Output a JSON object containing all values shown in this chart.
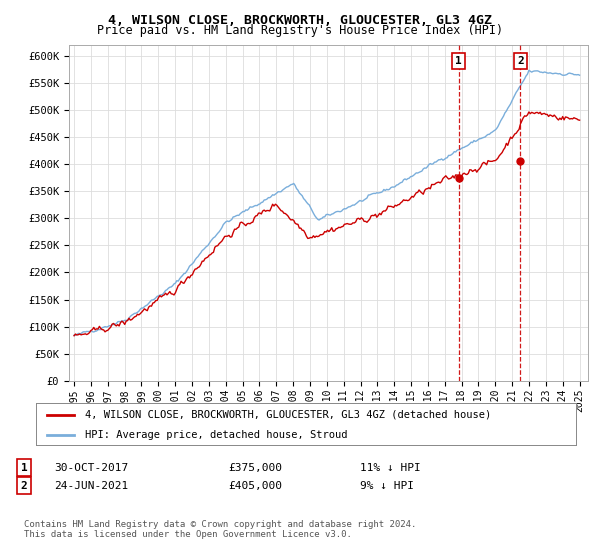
{
  "title": "4, WILSON CLOSE, BROCKWORTH, GLOUCESTER, GL3 4GZ",
  "subtitle": "Price paid vs. HM Land Registry's House Price Index (HPI)",
  "ylabel_ticks": [
    "£0",
    "£50K",
    "£100K",
    "£150K",
    "£200K",
    "£250K",
    "£300K",
    "£350K",
    "£400K",
    "£450K",
    "£500K",
    "£550K",
    "£600K"
  ],
  "ylim": [
    0,
    620000
  ],
  "ytick_vals": [
    0,
    50000,
    100000,
    150000,
    200000,
    250000,
    300000,
    350000,
    400000,
    450000,
    500000,
    550000,
    600000
  ],
  "xlim_start": 1994.7,
  "xlim_end": 2025.5,
  "xtick_years": [
    1995,
    1996,
    1997,
    1998,
    1999,
    2000,
    2001,
    2002,
    2003,
    2004,
    2005,
    2006,
    2007,
    2008,
    2009,
    2010,
    2011,
    2012,
    2013,
    2014,
    2015,
    2016,
    2017,
    2018,
    2019,
    2020,
    2021,
    2022,
    2023,
    2024,
    2025
  ],
  "legend_entries": [
    {
      "label": "4, WILSON CLOSE, BROCKWORTH, GLOUCESTER, GL3 4GZ (detached house)",
      "color": "#cc0000"
    },
    {
      "label": "HPI: Average price, detached house, Stroud",
      "color": "#7aaedb"
    }
  ],
  "transaction_1": {
    "date": "30-OCT-2017",
    "price": 375000,
    "pct": "11%",
    "direction": "↓",
    "x": 2017.83
  },
  "transaction_2": {
    "date": "24-JUN-2021",
    "price": 405000,
    "pct": "9%",
    "direction": "↓",
    "x": 2021.48
  },
  "plot_bg_color": "#ffffff",
  "grid_color": "#dddddd",
  "footnote": "Contains HM Land Registry data © Crown copyright and database right 2024.\nThis data is licensed under the Open Government Licence v3.0."
}
